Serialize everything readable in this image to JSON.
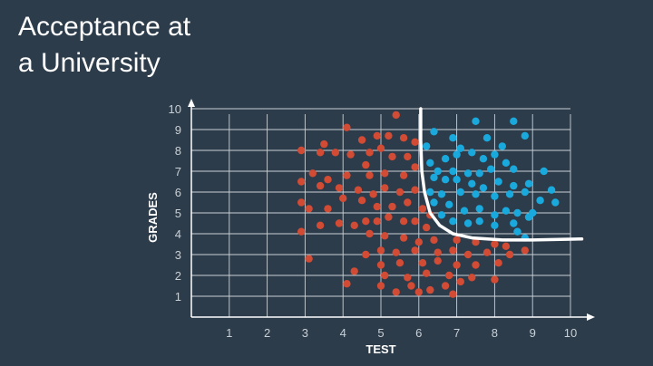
{
  "title": [
    "Acceptance at",
    "a University"
  ],
  "chart_data": {
    "type": "scatter",
    "xlabel": "TEST",
    "ylabel": "GRADES",
    "xlim": [
      0,
      10
    ],
    "ylim": [
      0,
      10
    ],
    "xticks": [
      "1",
      "2",
      "3",
      "4",
      "5",
      "6",
      "7",
      "8",
      "9",
      "10"
    ],
    "yticks": [
      "1",
      "2",
      "3",
      "4",
      "5",
      "6",
      "7",
      "8",
      "9",
      "10"
    ],
    "grid": true,
    "colors": {
      "accepted": "#19a9dd",
      "rejected": "#d24b34",
      "boundary": "#ffffff",
      "grid": "#c9d0d6"
    },
    "series": [
      {
        "color": "accepted",
        "points": [
          [
            6.4,
            8.9
          ],
          [
            7.5,
            9.4
          ],
          [
            8.5,
            9.4
          ],
          [
            8.8,
            8.7
          ],
          [
            6.2,
            8.2
          ],
          [
            6.9,
            8.6
          ],
          [
            7.1,
            8.1
          ],
          [
            7.8,
            8.6
          ],
          [
            8.2,
            8.2
          ],
          [
            6.7,
            7.6
          ],
          [
            7.0,
            7.8
          ],
          [
            7.4,
            7.9
          ],
          [
            7.7,
            7.6
          ],
          [
            8.0,
            7.8
          ],
          [
            8.3,
            7.4
          ],
          [
            6.3,
            7.4
          ],
          [
            6.5,
            7.0
          ],
          [
            6.9,
            7.0
          ],
          [
            7.3,
            6.9
          ],
          [
            7.6,
            6.9
          ],
          [
            7.9,
            7.1
          ],
          [
            8.5,
            7.1
          ],
          [
            9.3,
            7.0
          ],
          [
            6.4,
            6.7
          ],
          [
            6.7,
            6.6
          ],
          [
            7.0,
            6.6
          ],
          [
            7.4,
            6.4
          ],
          [
            7.7,
            6.2
          ],
          [
            8.1,
            6.5
          ],
          [
            8.5,
            6.3
          ],
          [
            8.9,
            6.4
          ],
          [
            9.5,
            6.1
          ],
          [
            6.3,
            6.0
          ],
          [
            6.6,
            5.9
          ],
          [
            7.1,
            6.0
          ],
          [
            7.5,
            5.9
          ],
          [
            8.0,
            5.8
          ],
          [
            8.4,
            5.9
          ],
          [
            8.8,
            6.0
          ],
          [
            9.2,
            5.6
          ],
          [
            9.6,
            5.5
          ],
          [
            6.4,
            5.5
          ],
          [
            6.8,
            5.4
          ],
          [
            7.2,
            5.1
          ],
          [
            7.6,
            5.2
          ],
          [
            8.0,
            4.9
          ],
          [
            8.3,
            5.1
          ],
          [
            8.6,
            5.0
          ],
          [
            9.0,
            5.0
          ],
          [
            6.6,
            4.9
          ],
          [
            6.9,
            4.6
          ],
          [
            7.3,
            4.5
          ],
          [
            7.6,
            4.6
          ],
          [
            8.0,
            4.4
          ],
          [
            8.5,
            4.5
          ],
          [
            8.9,
            4.8
          ],
          [
            8.6,
            4.1
          ],
          [
            8.8,
            3.8
          ]
        ]
      },
      {
        "color": "rejected",
        "points": [
          [
            5.4,
            9.7
          ],
          [
            4.1,
            9.1
          ],
          [
            4.9,
            8.7
          ],
          [
            5.2,
            8.7
          ],
          [
            5.6,
            8.6
          ],
          [
            5.9,
            8.4
          ],
          [
            4.5,
            8.5
          ],
          [
            3.5,
            8.3
          ],
          [
            5.0,
            8.1
          ],
          [
            2.9,
            8.0
          ],
          [
            3.4,
            7.9
          ],
          [
            3.8,
            7.9
          ],
          [
            4.2,
            7.8
          ],
          [
            4.7,
            7.9
          ],
          [
            5.3,
            7.7
          ],
          [
            5.7,
            7.7
          ],
          [
            5.9,
            7.2
          ],
          [
            4.6,
            7.3
          ],
          [
            3.2,
            6.9
          ],
          [
            3.6,
            6.6
          ],
          [
            4.1,
            6.8
          ],
          [
            4.7,
            6.8
          ],
          [
            5.1,
            6.9
          ],
          [
            5.6,
            6.8
          ],
          [
            2.9,
            6.5
          ],
          [
            3.4,
            6.3
          ],
          [
            3.9,
            6.2
          ],
          [
            4.4,
            6.1
          ],
          [
            4.8,
            5.9
          ],
          [
            5.1,
            6.2
          ],
          [
            5.5,
            6.0
          ],
          [
            5.9,
            6.1
          ],
          [
            2.9,
            5.5
          ],
          [
            3.1,
            5.2
          ],
          [
            3.6,
            5.2
          ],
          [
            4.0,
            5.7
          ],
          [
            4.5,
            5.6
          ],
          [
            4.9,
            5.3
          ],
          [
            5.3,
            5.3
          ],
          [
            5.7,
            5.5
          ],
          [
            6.1,
            5.2
          ],
          [
            6.3,
            4.9
          ],
          [
            3.4,
            4.4
          ],
          [
            3.9,
            4.5
          ],
          [
            4.3,
            4.4
          ],
          [
            4.6,
            4.6
          ],
          [
            4.9,
            4.6
          ],
          [
            5.2,
            4.8
          ],
          [
            5.6,
            4.6
          ],
          [
            5.9,
            4.6
          ],
          [
            6.2,
            4.3
          ],
          [
            2.9,
            4.1
          ],
          [
            4.7,
            4.0
          ],
          [
            5.1,
            3.9
          ],
          [
            5.6,
            3.8
          ],
          [
            6.0,
            3.6
          ],
          [
            6.4,
            3.7
          ],
          [
            7.0,
            3.7
          ],
          [
            7.5,
            3.6
          ],
          [
            8.0,
            3.5
          ],
          [
            8.3,
            3.4
          ],
          [
            4.6,
            3.0
          ],
          [
            5.0,
            3.2
          ],
          [
            5.4,
            3.1
          ],
          [
            5.9,
            3.2
          ],
          [
            6.5,
            3.1
          ],
          [
            6.9,
            3.2
          ],
          [
            7.3,
            3.0
          ],
          [
            7.8,
            3.1
          ],
          [
            8.4,
            3.0
          ],
          [
            8.8,
            3.2
          ],
          [
            3.1,
            2.8
          ],
          [
            5.0,
            2.5
          ],
          [
            5.5,
            2.6
          ],
          [
            6.1,
            2.6
          ],
          [
            6.5,
            2.7
          ],
          [
            7.0,
            2.5
          ],
          [
            7.5,
            2.5
          ],
          [
            8.1,
            2.6
          ],
          [
            4.3,
            2.2
          ],
          [
            5.1,
            2.0
          ],
          [
            5.7,
            1.9
          ],
          [
            6.2,
            2.1
          ],
          [
            6.8,
            2.0
          ],
          [
            7.4,
            1.9
          ],
          [
            8.0,
            1.8
          ],
          [
            4.1,
            1.6
          ],
          [
            5.0,
            1.5
          ],
          [
            5.8,
            1.5
          ],
          [
            6.3,
            1.3
          ],
          [
            6.7,
            1.5
          ],
          [
            7.1,
            1.7
          ],
          [
            5.4,
            1.2
          ],
          [
            6.0,
            1.2
          ],
          [
            6.9,
            1.1
          ]
        ]
      }
    ],
    "boundary": [
      [
        6.05,
        10.0
      ],
      [
        6.05,
        8.5
      ],
      [
        6.08,
        7.0
      ],
      [
        6.15,
        6.0
      ],
      [
        6.3,
        5.0
      ],
      [
        6.55,
        4.4
      ],
      [
        6.9,
        4.0
      ],
      [
        7.4,
        3.8
      ],
      [
        8.2,
        3.7
      ],
      [
        9.0,
        3.7
      ],
      [
        10.3,
        3.75
      ]
    ]
  }
}
